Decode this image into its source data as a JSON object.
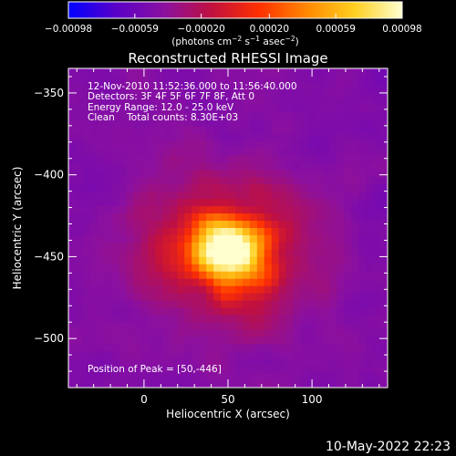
{
  "chart_data": {
    "type": "heatmap",
    "title": "Reconstructed RHESSI Image",
    "xlabel": "Heliocentric X (arcsec)",
    "ylabel": "Heliocentric Y (arcsec)",
    "xlim": [
      -45,
      145
    ],
    "ylim": [
      -530,
      -335
    ],
    "x_ticks": [
      {
        "value": 0,
        "label": "0"
      },
      {
        "value": 50,
        "label": "50"
      },
      {
        "value": 100,
        "label": "100"
      }
    ],
    "y_ticks": [
      {
        "value": -350,
        "label": "−350"
      },
      {
        "value": -400,
        "label": "−400"
      },
      {
        "value": -450,
        "label": "−450"
      },
      {
        "value": -500,
        "label": "−500"
      }
    ],
    "colorbar": {
      "min": -0.00098,
      "max": 0.00098,
      "ticks": [
        {
          "value": -0.00098,
          "label": "−0.00098"
        },
        {
          "value": -0.00059,
          "label": "−0.00059"
        },
        {
          "value": -0.0002,
          "label": "−0.00020"
        },
        {
          "value": 0.0002,
          "label": "0.00020"
        },
        {
          "value": 0.00059,
          "label": "0.00059"
        },
        {
          "value": 0.00098,
          "label": "0.00098"
        }
      ],
      "unit_prefix": "(photons cm",
      "unit_exp1": "−2",
      "unit_mid": " s",
      "unit_exp2": "−1",
      "unit_mid2": " asec",
      "unit_exp3": "−2",
      "unit_suffix": ")",
      "colors": [
        "#0000ff",
        "#5a00c8",
        "#8a10a0",
        "#c01040",
        "#ff3000",
        "#ff8800",
        "#ffd020",
        "#ffffd0"
      ]
    },
    "peak": {
      "x": 50,
      "y": -446
    },
    "annotations": {
      "time_range": "12-Nov-2010 11:52:36.000 to 11:56:40.000",
      "detectors": "Detectors: 3F 4F 5F 6F 7F 8F, Att 0",
      "energy": "Energy Range: 12.0 - 25.0 keV",
      "clean": "Clean    Total counts: 8.30E+03",
      "peak_label": "Position of Peak = [50,-446]"
    }
  },
  "footer": {
    "timestamp": "10-May-2022 22:23"
  }
}
